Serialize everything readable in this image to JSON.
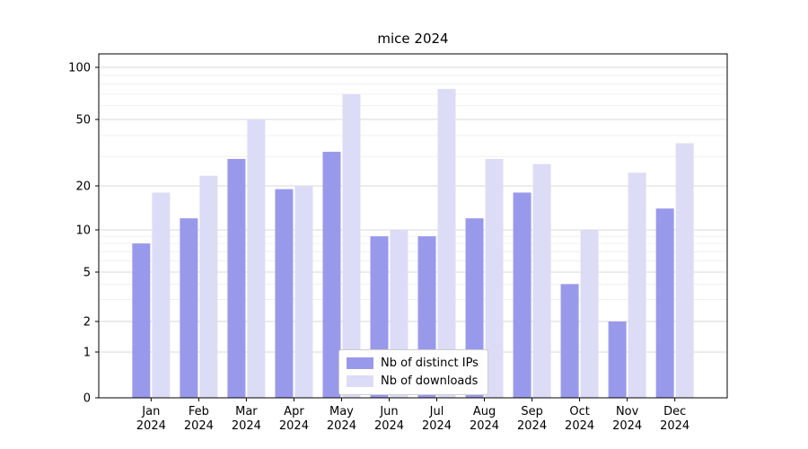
{
  "chart_data": {
    "type": "bar",
    "title": "mice 2024",
    "categories": [
      "Jan 2024",
      "Feb 2024",
      "Mar 2024",
      "Apr 2024",
      "May 2024",
      "Jun 2024",
      "Jul 2024",
      "Aug 2024",
      "Sep 2024",
      "Oct 2024",
      "Nov 2024",
      "Dec 2024"
    ],
    "series": [
      {
        "name": "Nb of distinct IPs",
        "color": "#9999ec",
        "values": [
          8,
          12,
          29,
          19,
          32,
          9,
          9,
          12,
          18,
          4,
          2,
          14
        ]
      },
      {
        "name": "Nb of downloads",
        "color": "#dcdcf7",
        "values": [
          18,
          23,
          50,
          20,
          70,
          10,
          75,
          29,
          27,
          10,
          24,
          36
        ]
      }
    ],
    "xlabel": "",
    "ylabel": "",
    "yscale": "symlog",
    "yticks": [
      0,
      1,
      2,
      5,
      10,
      20,
      50,
      100
    ],
    "minor_ticks": [
      3,
      4,
      6,
      7,
      8,
      9,
      30,
      40,
      60,
      70,
      80,
      90
    ],
    "ylim": [
      0,
      110
    ],
    "grid": "horizontal",
    "legend_position": "lower center",
    "colors": {
      "major_grid": "#d9d9d9",
      "minor_grid": "#ececec",
      "axis": "#000000",
      "text": "#000000"
    }
  }
}
